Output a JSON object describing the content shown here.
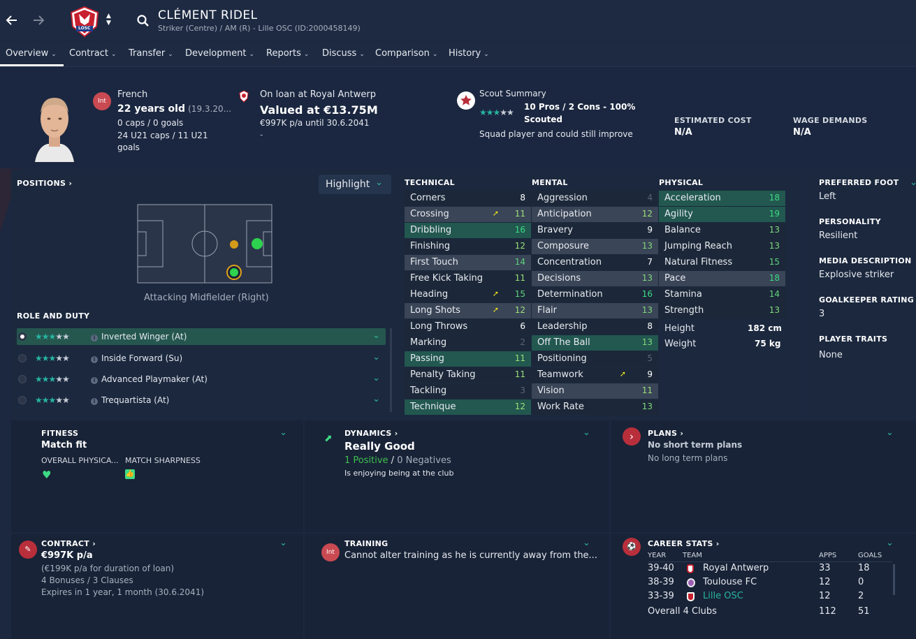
{
  "player": {
    "name": "CLÉMENT RIDEL",
    "subtitle": "Striker (Centre) / AM (R) - Lille OSC (ID:2000458149)",
    "nationality": "French",
    "int_badge": "Int",
    "age": "22 years old",
    "dob": "(19.3.20...",
    "caps": "0 caps / 0 goals",
    "u21": "24 U21 caps / 11 U21 goals",
    "club_badge": "LOSC"
  },
  "nav": {
    "items": [
      "Overview",
      "Contract",
      "Transfer",
      "Development",
      "Reports",
      "Discuss",
      "Comparison",
      "History"
    ]
  },
  "loan": {
    "status": "On loan at Royal Antwerp",
    "value": "Valued at €13.75M",
    "wage": "€997K p/a until 30.6.2041",
    "dash": "-"
  },
  "scout": {
    "title": "Scout Summary",
    "pros": "10 Pros / 2 Cons - 100%",
    "scouted": "Scouted",
    "summary": "Squad player and could still improve",
    "est_cost_label": "ESTIMATED COST",
    "est_cost": "N/A",
    "wage_label": "WAGE DEMANDS",
    "wage": "N/A"
  },
  "positions": {
    "title": "POSITIONS",
    "highlight": "Highlight",
    "current": "Attacking Midfielder (Right)",
    "role_title": "ROLE AND DUTY",
    "roles": [
      {
        "name": "Inverted Winger (At)",
        "selected": true
      },
      {
        "name": "Inside Forward (Su)",
        "selected": false
      },
      {
        "name": "Advanced Playmaker (At)",
        "selected": false
      },
      {
        "name": "Trequartista (At)",
        "selected": false
      }
    ]
  },
  "technical": {
    "title": "TECHNICAL",
    "attrs": [
      {
        "name": "Corners",
        "value": "8",
        "hl": "none",
        "color": "#ffffff"
      },
      {
        "name": "Crossing",
        "value": "11",
        "hl": "grey",
        "color": "#9be07a",
        "arrow": true
      },
      {
        "name": "Dribbling",
        "value": "16",
        "hl": "teal",
        "color": "#3ddc84"
      },
      {
        "name": "Finishing",
        "value": "12",
        "hl": "none",
        "color": "#9be07a"
      },
      {
        "name": "First Touch",
        "value": "14",
        "hl": "grey",
        "color": "#5fd47c"
      },
      {
        "name": "Free Kick Taking",
        "value": "11",
        "hl": "none",
        "color": "#9be07a"
      },
      {
        "name": "Heading",
        "value": "15",
        "hl": "none",
        "color": "#5fd47c",
        "arrow": true
      },
      {
        "name": "Long Shots",
        "value": "12",
        "hl": "grey",
        "color": "#9be07a",
        "arrow": true
      },
      {
        "name": "Long Throws",
        "value": "6",
        "hl": "none",
        "color": "#ffffff"
      },
      {
        "name": "Marking",
        "value": "2",
        "hl": "none",
        "color": "#5b6577"
      },
      {
        "name": "Passing",
        "value": "11",
        "hl": "teal",
        "color": "#9be07a"
      },
      {
        "name": "Penalty Taking",
        "value": "11",
        "hl": "none",
        "color": "#9be07a"
      },
      {
        "name": "Tackling",
        "value": "3",
        "hl": "none",
        "color": "#5b6577"
      },
      {
        "name": "Technique",
        "value": "12",
        "hl": "teal",
        "color": "#9be07a"
      }
    ]
  },
  "mental": {
    "title": "MENTAL",
    "attrs": [
      {
        "name": "Aggression",
        "value": "4",
        "hl": "none",
        "color": "#5b6577"
      },
      {
        "name": "Anticipation",
        "value": "12",
        "hl": "grey",
        "color": "#9be07a"
      },
      {
        "name": "Bravery",
        "value": "9",
        "hl": "none",
        "color": "#ffffff"
      },
      {
        "name": "Composure",
        "value": "13",
        "hl": "grey",
        "color": "#7fd87c"
      },
      {
        "name": "Concentration",
        "value": "7",
        "hl": "none",
        "color": "#ffffff"
      },
      {
        "name": "Decisions",
        "value": "13",
        "hl": "grey",
        "color": "#7fd87c"
      },
      {
        "name": "Determination",
        "value": "16",
        "hl": "none",
        "color": "#3ddc84"
      },
      {
        "name": "Flair",
        "value": "13",
        "hl": "grey",
        "color": "#7fd87c"
      },
      {
        "name": "Leadership",
        "value": "8",
        "hl": "none",
        "color": "#ffffff"
      },
      {
        "name": "Off The Ball",
        "value": "13",
        "hl": "teal",
        "color": "#7fd87c"
      },
      {
        "name": "Positioning",
        "value": "5",
        "hl": "none",
        "color": "#5b6577"
      },
      {
        "name": "Teamwork",
        "value": "9",
        "hl": "none",
        "color": "#ffffff",
        "arrow": true
      },
      {
        "name": "Vision",
        "value": "11",
        "hl": "grey",
        "color": "#9be07a"
      },
      {
        "name": "Work Rate",
        "value": "13",
        "hl": "none",
        "color": "#7fd87c"
      }
    ]
  },
  "physical": {
    "title": "PHYSICAL",
    "attrs": [
      {
        "name": "Acceleration",
        "value": "18",
        "hl": "teal",
        "color": "#3ddc84"
      },
      {
        "name": "Agility",
        "value": "19",
        "hl": "teal",
        "color": "#3ddc84"
      },
      {
        "name": "Balance",
        "value": "13",
        "hl": "none",
        "color": "#7fd87c"
      },
      {
        "name": "Jumping Reach",
        "value": "13",
        "hl": "none",
        "color": "#7fd87c"
      },
      {
        "name": "Natural Fitness",
        "value": "15",
        "hl": "none",
        "color": "#5fd47c"
      },
      {
        "name": "Pace",
        "value": "18",
        "hl": "grey",
        "color": "#3ddc84"
      },
      {
        "name": "Stamina",
        "value": "14",
        "hl": "none",
        "color": "#5fd47c"
      },
      {
        "name": "Strength",
        "value": "13",
        "hl": "none",
        "color": "#7fd87c"
      }
    ],
    "height_label": "Height",
    "height": "182 cm",
    "weight_label": "Weight",
    "weight": "75 kg"
  },
  "side": {
    "foot_label": "PREFERRED FOOT",
    "foot": "Left",
    "personality_label": "PERSONALITY",
    "personality": "Resilient",
    "media_label": "MEDIA DESCRIPTION",
    "media": "Explosive striker",
    "gk_label": "GOALKEEPER RATING",
    "gk": "3",
    "traits_label": "PLAYER TRAITS",
    "traits": "None"
  },
  "fitness": {
    "title": "FITNESS",
    "status": "Match fit",
    "overall_label": "OVERALL PHYSICA...",
    "sharpness_label": "MATCH SHARPNESS"
  },
  "dynamics": {
    "title": "DYNAMICS",
    "status": "Really Good",
    "positive": "1 Positive",
    "sep": "/",
    "negative": "0 Negatives",
    "note": "Is enjoying being at the club"
  },
  "plans": {
    "title": "PLANS",
    "short": "No short term plans",
    "long": "No long term plans"
  },
  "contract": {
    "title": "CONTRACT",
    "wage": "€997K p/a",
    "loan_wage": "(€199K p/a for duration of loan)",
    "bonuses": "4 Bonuses / 3 Clauses",
    "expires": "Expires in 1 year, 1 month (30.6.2041)"
  },
  "training": {
    "title": "TRAINING",
    "badge": "Int",
    "text": "Cannot alter training as he is currently away from the..."
  },
  "career": {
    "title": "CAREER STATS",
    "col_year": "YEAR",
    "col_team": "TEAM",
    "col_apps": "APPS",
    "col_goals": "GOALS",
    "rows": [
      {
        "year": "39-40",
        "team": "Royal Antwerp",
        "apps": "33",
        "goals": "18"
      },
      {
        "year": "38-39",
        "team": "Toulouse FC",
        "apps": "12",
        "goals": "0"
      },
      {
        "year": "33-39",
        "team": "Lille OSC",
        "apps": "12",
        "goals": "2"
      }
    ],
    "overall_label": "Overall 4 Clubs",
    "overall_apps": "112",
    "overall_goals": "51"
  }
}
